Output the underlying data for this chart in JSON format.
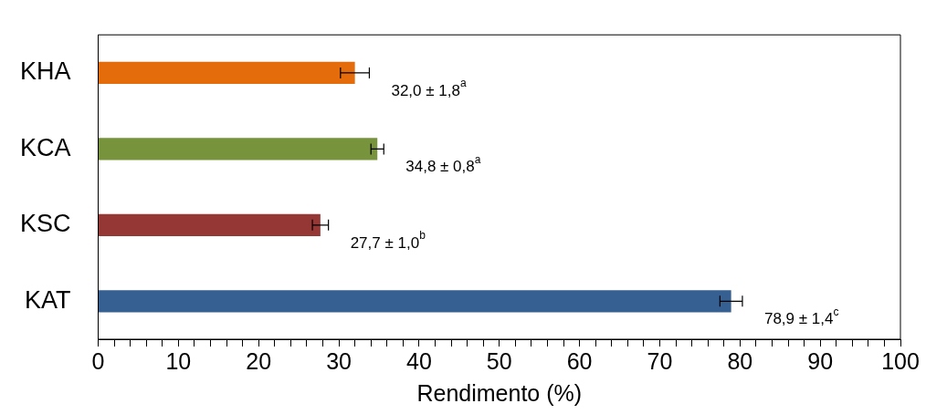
{
  "chart_data": {
    "type": "bar",
    "orientation": "horizontal",
    "xlabel": "Rendimento (%)",
    "categories": [
      "KHA",
      "KCA",
      "KSC",
      "KAT"
    ],
    "values": [
      32.0,
      34.8,
      27.7,
      78.9
    ],
    "colors": [
      "#e46c0a",
      "#77933c",
      "#953735",
      "#376092"
    ],
    "errors": [
      1.8,
      0.8,
      1.0,
      1.4
    ],
    "value_labels": [
      "32,0 ± 1,8$^{a}$",
      "34,8 ± 0,8$^{a}$",
      "27,7 ± 1,0$^{b}$",
      "78,9 ± 1,4$^{c}$"
    ],
    "xlim": [
      0,
      100
    ],
    "xticks": [
      0,
      {
        "value": 2,
        "label": null
      },
      {
        "value": 4,
        "label": null
      },
      {
        "value": 6,
        "label": null
      },
      {
        "value": 8,
        "label": null
      },
      10,
      {
        "value": 12,
        "label": null
      },
      {
        "value": 14,
        "label": null
      },
      {
        "value": 16,
        "label": null
      },
      {
        "value": 18,
        "label": null
      },
      20,
      {
        "value": 22,
        "label": null
      },
      {
        "value": 24,
        "label": null
      },
      {
        "value": 26,
        "label": null
      },
      {
        "value": 28,
        "label": null
      },
      30,
      {
        "value": 32,
        "label": null
      },
      {
        "value": 34,
        "label": null
      },
      {
        "value": 36,
        "label": null
      },
      {
        "value": 38,
        "label": null
      },
      40,
      {
        "value": 42,
        "label": null
      },
      {
        "value": 44,
        "label": null
      },
      {
        "value": 46,
        "label": null
      },
      {
        "value": 48,
        "label": null
      },
      50,
      {
        "value": 52,
        "label": null
      },
      {
        "value": 54,
        "label": null
      },
      {
        "value": 56,
        "label": null
      },
      {
        "value": 58,
        "label": null
      },
      60,
      {
        "value": 62,
        "label": null
      },
      {
        "value": 64,
        "label": null
      },
      {
        "value": 66,
        "label": null
      },
      {
        "value": 68,
        "label": null
      },
      70,
      {
        "value": 72,
        "label": null
      },
      {
        "value": 74,
        "label": null
      },
      {
        "value": 76,
        "label": null
      },
      {
        "value": 78,
        "label": null
      },
      80,
      {
        "value": 82,
        "label": null
      },
      {
        "value": 84,
        "label": null
      },
      {
        "value": 86,
        "label": null
      },
      {
        "value": 88,
        "label": null
      },
      90,
      {
        "value": 92,
        "label": null
      },
      {
        "value": 94,
        "label": null
      },
      {
        "value": 96,
        "label": null
      },
      {
        "value": 98,
        "label": null
      },
      100
    ],
    "grid": false,
    "legend": false
  }
}
